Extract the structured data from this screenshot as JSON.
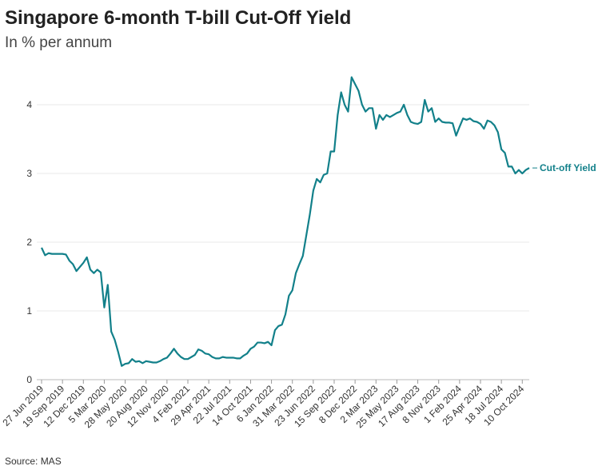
{
  "chart_data": {
    "type": "line",
    "title": "Singapore 6-month T-bill Cut-Off Yield",
    "subtitle": "In % per annum",
    "source": "Source: MAS",
    "categories": [
      "27 Jun 2019",
      null,
      null,
      null,
      null,
      null,
      "19 Sep 2019",
      null,
      null,
      null,
      null,
      null,
      "12 Dec 2019",
      null,
      null,
      null,
      null,
      null,
      "5 Mar 2020",
      null,
      null,
      null,
      null,
      null,
      "28 May 2020",
      null,
      null,
      null,
      null,
      null,
      "20 Aug 2020",
      null,
      null,
      null,
      null,
      null,
      "12 Nov 2020",
      null,
      null,
      null,
      null,
      null,
      "4 Feb 2021",
      null,
      null,
      null,
      null,
      null,
      "29 Apr 2021",
      null,
      null,
      null,
      null,
      null,
      "22 Jul 2021",
      null,
      null,
      null,
      null,
      null,
      "14 Oct 2021",
      null,
      null,
      null,
      null,
      null,
      "6 Jan 2022",
      null,
      null,
      null,
      null,
      null,
      "31 Mar 2022",
      null,
      null,
      null,
      null,
      null,
      "23 Jun 2022",
      null,
      null,
      null,
      null,
      null,
      "15 Sep 2022",
      null,
      null,
      null,
      null,
      null,
      "8 Dec 2022",
      null,
      null,
      null,
      null,
      null,
      "2 Mar 2023",
      null,
      null,
      null,
      null,
      null,
      "25 May 2023",
      null,
      null,
      null,
      null,
      null,
      "17 Aug 2023",
      null,
      null,
      null,
      null,
      null,
      "8 Nov 2023",
      null,
      null,
      null,
      null,
      null,
      "1 Feb 2024",
      null,
      null,
      null,
      null,
      null,
      "25 Apr 2024",
      null,
      null,
      null,
      null,
      null,
      "18 Jul 2024",
      null,
      null,
      null,
      null,
      null,
      "10 Oct 2024",
      null,
      null
    ],
    "series": [
      {
        "name": "Cut-off Yield",
        "color": "#12808a",
        "values": [
          1.92,
          1.81,
          1.84,
          1.83,
          1.83,
          1.83,
          1.83,
          1.82,
          1.73,
          1.68,
          1.58,
          1.64,
          1.7,
          1.78,
          1.6,
          1.55,
          1.6,
          1.56,
          1.05,
          1.38,
          0.7,
          0.58,
          0.4,
          0.2,
          0.23,
          0.24,
          0.3,
          0.26,
          0.27,
          0.24,
          0.27,
          0.26,
          0.25,
          0.25,
          0.27,
          0.3,
          0.32,
          0.38,
          0.45,
          0.38,
          0.33,
          0.3,
          0.3,
          0.33,
          0.36,
          0.44,
          0.42,
          0.38,
          0.37,
          0.33,
          0.31,
          0.31,
          0.33,
          0.32,
          0.32,
          0.32,
          0.31,
          0.31,
          0.35,
          0.38,
          0.45,
          0.48,
          0.54,
          0.54,
          0.53,
          0.55,
          0.5,
          0.72,
          0.78,
          0.8,
          0.95,
          1.22,
          1.3,
          1.55,
          1.68,
          1.8,
          2.1,
          2.4,
          2.75,
          2.92,
          2.87,
          2.98,
          3.0,
          3.32,
          3.32,
          3.85,
          4.18,
          4.0,
          3.9,
          4.4,
          4.3,
          4.2,
          4.0,
          3.9,
          3.95,
          3.95,
          3.65,
          3.85,
          3.78,
          3.85,
          3.82,
          3.85,
          3.88,
          3.9,
          4.0,
          3.85,
          3.75,
          3.73,
          3.72,
          3.75,
          4.07,
          3.9,
          3.95,
          3.75,
          3.8,
          3.75,
          3.74,
          3.74,
          3.73,
          3.55,
          3.68,
          3.8,
          3.78,
          3.8,
          3.76,
          3.75,
          3.72,
          3.65,
          3.77,
          3.75,
          3.7,
          3.6,
          3.35,
          3.3,
          3.1,
          3.1,
          3.0,
          3.05,
          3.0,
          3.05,
          3.08
        ]
      }
    ],
    "ylim": [
      0,
      4.5
    ],
    "yticks": [
      0,
      1,
      2,
      3,
      4
    ],
    "grid": true
  }
}
